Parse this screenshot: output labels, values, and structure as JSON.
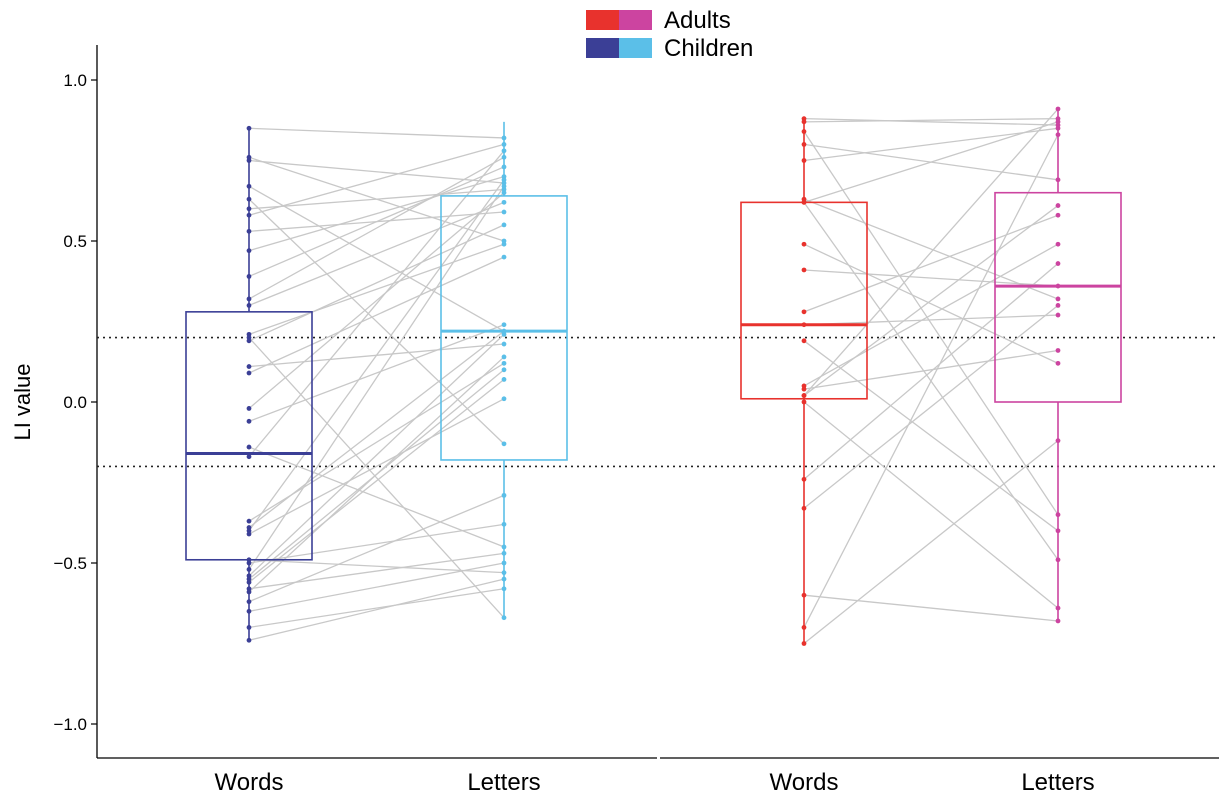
{
  "chart_data": {
    "type": "box",
    "ylabel": "LI value",
    "ylim": [
      -1.1,
      1.1
    ],
    "yticks": [
      1.0,
      0.5,
      0.0,
      -0.5,
      -1.0
    ],
    "ytick_labels": [
      "1.0",
      "0.5",
      "0.0",
      "−0.5",
      "−1.0"
    ],
    "reference_lines": [
      0.2,
      -0.2
    ],
    "legend": [
      {
        "label": "Adults",
        "colors": [
          "#e8322d",
          "#cc44a0"
        ]
      },
      {
        "label": "Children",
        "colors": [
          "#3b3f96",
          "#5bbfe8"
        ]
      }
    ],
    "groups": [
      {
        "name": "Children",
        "categories": [
          "Words",
          "Letters"
        ],
        "colors": [
          "#3b3f96",
          "#5bbfe8"
        ],
        "boxes": [
          {
            "q1": -0.49,
            "median": -0.16,
            "q3": 0.28,
            "min": -0.74,
            "max": 0.85
          },
          {
            "q1": -0.18,
            "median": 0.22,
            "q3": 0.64,
            "min": -0.67,
            "max": 0.87
          }
        ],
        "pairs": [
          [
            0.85,
            0.82
          ],
          [
            0.76,
            0.5
          ],
          [
            0.75,
            0.68
          ],
          [
            0.67,
            0.22
          ],
          [
            0.63,
            -0.13
          ],
          [
            0.6,
            0.66
          ],
          [
            0.58,
            0.8
          ],
          [
            0.53,
            0.59
          ],
          [
            0.47,
            0.7
          ],
          [
            0.39,
            0.73
          ],
          [
            0.32,
            0.76
          ],
          [
            0.3,
            0.62
          ],
          [
            0.21,
            0.49
          ],
          [
            0.2,
            -0.67
          ],
          [
            0.19,
            0.55
          ],
          [
            0.11,
            0.18
          ],
          [
            0.09,
            0.45
          ],
          [
            -0.02,
            0.65
          ],
          [
            -0.06,
            0.24
          ],
          [
            -0.14,
            -0.45
          ],
          [
            -0.17,
            0.78
          ],
          [
            -0.37,
            0.12
          ],
          [
            -0.39,
            0.22
          ],
          [
            -0.4,
            0.69
          ],
          [
            -0.41,
            0.01
          ],
          [
            -0.49,
            -0.53
          ],
          [
            -0.5,
            -0.38
          ],
          [
            -0.52,
            0.67
          ],
          [
            -0.54,
            0.21
          ],
          [
            -0.55,
            0.1
          ],
          [
            -0.56,
            0.07
          ],
          [
            -0.58,
            -0.47
          ],
          [
            -0.59,
            0.14
          ],
          [
            -0.62,
            -0.29
          ],
          [
            -0.65,
            -0.5
          ],
          [
            -0.7,
            -0.58
          ],
          [
            -0.74,
            -0.55
          ]
        ]
      },
      {
        "name": "Adults",
        "categories": [
          "Words",
          "Letters"
        ],
        "colors": [
          "#e8322d",
          "#cc44a0"
        ],
        "boxes": [
          {
            "q1": 0.01,
            "median": 0.24,
            "q3": 0.62,
            "min": -0.75,
            "max": 0.88
          },
          {
            "q1": 0.0,
            "median": 0.36,
            "q3": 0.65,
            "min": -0.68,
            "max": 0.91
          }
        ],
        "pairs": [
          [
            0.88,
            0.86
          ],
          [
            0.87,
            0.88
          ],
          [
            0.84,
            -0.35
          ],
          [
            0.8,
            0.69
          ],
          [
            0.75,
            0.85
          ],
          [
            0.62,
            0.87
          ],
          [
            0.62,
            -0.49
          ],
          [
            0.49,
            0.12
          ],
          [
            0.41,
            0.36
          ],
          [
            0.28,
            0.58
          ],
          [
            0.19,
            -0.4
          ],
          [
            0.05,
            0.49
          ],
          [
            0.04,
            0.16
          ],
          [
            0.02,
            0.61
          ],
          [
            0.0,
            -0.64
          ],
          [
            -0.24,
            0.43
          ],
          [
            -0.33,
            0.3
          ],
          [
            -0.6,
            -0.68
          ],
          [
            -0.7,
            0.83
          ],
          [
            -0.75,
            -0.12
          ],
          [
            0.63,
            0.32
          ],
          [
            0.24,
            0.27
          ],
          [
            0.02,
            0.91
          ]
        ]
      }
    ]
  }
}
